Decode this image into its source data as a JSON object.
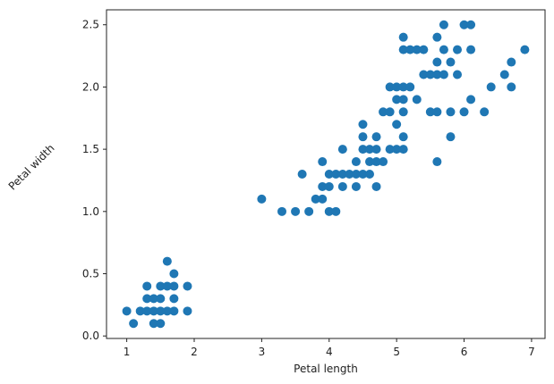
{
  "chart_data": {
    "type": "scatter",
    "xlabel": "Petal length",
    "ylabel": "Petal width",
    "xlim": [
      0.7,
      7.2
    ],
    "ylim": [
      -0.02,
      2.62
    ],
    "xticks": [
      1,
      2,
      3,
      4,
      5,
      6,
      7
    ],
    "yticks": [
      0.0,
      0.5,
      1.0,
      1.5,
      2.0,
      2.5
    ],
    "grid": false,
    "marker_color": "#1f77b4",
    "points": [
      [
        1.0,
        0.2
      ],
      [
        1.1,
        0.1
      ],
      [
        1.2,
        0.2
      ],
      [
        1.3,
        0.2
      ],
      [
        1.3,
        0.3
      ],
      [
        1.3,
        0.4
      ],
      [
        1.4,
        0.1
      ],
      [
        1.4,
        0.2
      ],
      [
        1.4,
        0.3
      ],
      [
        1.5,
        0.1
      ],
      [
        1.5,
        0.2
      ],
      [
        1.5,
        0.3
      ],
      [
        1.5,
        0.4
      ],
      [
        1.6,
        0.2
      ],
      [
        1.6,
        0.4
      ],
      [
        1.6,
        0.6
      ],
      [
        1.7,
        0.2
      ],
      [
        1.7,
        0.3
      ],
      [
        1.7,
        0.4
      ],
      [
        1.7,
        0.5
      ],
      [
        1.9,
        0.2
      ],
      [
        1.9,
        0.4
      ],
      [
        3.0,
        1.1
      ],
      [
        3.3,
        1.0
      ],
      [
        3.5,
        1.0
      ],
      [
        3.6,
        1.3
      ],
      [
        3.7,
        1.0
      ],
      [
        3.8,
        1.1
      ],
      [
        3.9,
        1.1
      ],
      [
        3.9,
        1.2
      ],
      [
        3.9,
        1.4
      ],
      [
        4.0,
        1.0
      ],
      [
        4.0,
        1.2
      ],
      [
        4.0,
        1.3
      ],
      [
        4.1,
        1.0
      ],
      [
        4.1,
        1.3
      ],
      [
        4.2,
        1.2
      ],
      [
        4.2,
        1.3
      ],
      [
        4.2,
        1.5
      ],
      [
        4.3,
        1.3
      ],
      [
        4.4,
        1.2
      ],
      [
        4.4,
        1.3
      ],
      [
        4.4,
        1.4
      ],
      [
        4.5,
        1.3
      ],
      [
        4.5,
        1.5
      ],
      [
        4.5,
        1.6
      ],
      [
        4.5,
        1.7
      ],
      [
        4.6,
        1.3
      ],
      [
        4.6,
        1.4
      ],
      [
        4.6,
        1.5
      ],
      [
        4.7,
        1.2
      ],
      [
        4.7,
        1.4
      ],
      [
        4.7,
        1.5
      ],
      [
        4.7,
        1.6
      ],
      [
        4.8,
        1.4
      ],
      [
        4.8,
        1.8
      ],
      [
        4.9,
        1.5
      ],
      [
        4.9,
        1.8
      ],
      [
        4.9,
        2.0
      ],
      [
        5.0,
        1.5
      ],
      [
        5.0,
        1.7
      ],
      [
        5.0,
        1.9
      ],
      [
        5.0,
        2.0
      ],
      [
        5.1,
        1.5
      ],
      [
        5.1,
        1.6
      ],
      [
        5.1,
        1.8
      ],
      [
        5.1,
        1.9
      ],
      [
        5.1,
        2.0
      ],
      [
        5.1,
        2.3
      ],
      [
        5.1,
        2.4
      ],
      [
        5.2,
        2.0
      ],
      [
        5.2,
        2.3
      ],
      [
        5.3,
        1.9
      ],
      [
        5.3,
        2.3
      ],
      [
        5.4,
        2.1
      ],
      [
        5.4,
        2.3
      ],
      [
        5.5,
        1.8
      ],
      [
        5.5,
        2.1
      ],
      [
        5.6,
        1.4
      ],
      [
        5.6,
        1.8
      ],
      [
        5.6,
        2.1
      ],
      [
        5.6,
        2.2
      ],
      [
        5.6,
        2.4
      ],
      [
        5.7,
        2.1
      ],
      [
        5.7,
        2.3
      ],
      [
        5.7,
        2.5
      ],
      [
        5.8,
        1.6
      ],
      [
        5.8,
        1.8
      ],
      [
        5.8,
        2.2
      ],
      [
        5.9,
        2.1
      ],
      [
        5.9,
        2.3
      ],
      [
        6.0,
        1.8
      ],
      [
        6.0,
        2.5
      ],
      [
        6.1,
        1.9
      ],
      [
        6.1,
        2.3
      ],
      [
        6.1,
        2.5
      ],
      [
        6.3,
        1.8
      ],
      [
        6.4,
        2.0
      ],
      [
        6.6,
        2.1
      ],
      [
        6.7,
        2.0
      ],
      [
        6.7,
        2.2
      ],
      [
        6.9,
        2.3
      ]
    ]
  }
}
